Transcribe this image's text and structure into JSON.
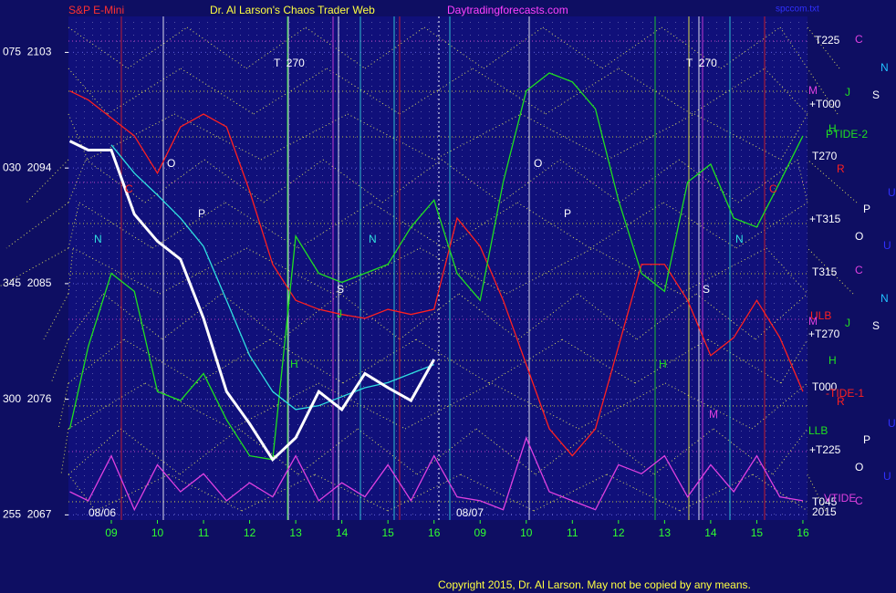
{
  "chart_data": {
    "type": "line",
    "symbol": "S&P E-Mini",
    "title": "Dr. Al Larson's Chaos Trader Web",
    "website": "Daytradingforecasts.com",
    "file_name": "spccom.txt",
    "day_labels": [
      "08/06",
      "08/07"
    ],
    "copyright": "Copyright 2015, Dr. Al Larson. May not be copied by any means.",
    "xlim": [
      8.07,
      24.1
    ],
    "xticks": [
      {
        "value": 9,
        "label": "09"
      },
      10,
      11,
      12,
      13,
      14,
      15,
      16,
      {
        "value": 17,
        "label": "09"
      },
      {
        "value": 18,
        "label": "10"
      },
      {
        "value": 19,
        "label": "11"
      },
      {
        "value": 20,
        "label": "12"
      },
      {
        "value": 21,
        "label": "13"
      },
      {
        "value": 22,
        "label": "14"
      },
      {
        "value": 23,
        "label": "15"
      },
      {
        "value": 24,
        "label": "16"
      }
    ],
    "ylim": [
      2066.6,
      2105.8
    ],
    "yticks": [
      {
        "value": 2103,
        "label": "075  2103"
      },
      {
        "value": 2094,
        "label": "030  2094"
      },
      {
        "value": 2085,
        "label": "345  2085"
      },
      {
        "value": 2076,
        "label": "300  2076"
      },
      {
        "value": 2067,
        "label": "255  2067"
      }
    ],
    "grid": true,
    "x": [
      8.1,
      8.5,
      9,
      9.5,
      10,
      10.5,
      11,
      11.5,
      12,
      12.5,
      13,
      13.5,
      14,
      14.5,
      15,
      15.5,
      16,
      16.5,
      17,
      17.5,
      18,
      18.5,
      19,
      19.5,
      20,
      20.5,
      21,
      21.5,
      22,
      22.5,
      23,
      23.5,
      24
    ],
    "series": [
      {
        "color": "#ff2020",
        "values": [
          2100.0,
          2099.3,
          2097.9,
          2096.5,
          2093.6,
          2097.2,
          2098.2,
          2097.2,
          2092.2,
          2086.5,
          2083.7,
          2083.0,
          2082.6,
          2082.3,
          2083.0,
          2082.6,
          2083.0,
          2090.1,
          2087.9,
          2083.7,
          2078.7,
          2073.7,
          2071.6,
          2073.7,
          2080.1,
          2086.5,
          2086.5,
          2083.7,
          2079.4,
          2080.8,
          2083.7,
          2080.8,
          2076.6
        ]
      },
      {
        "color": "#20e020",
        "values": [
          2073.7,
          2080.1,
          2085.8,
          2084.4,
          2076.6,
          2075.9,
          2078.0,
          2074.4,
          2071.6,
          2071.3,
          2088.7,
          2085.8,
          2085.1,
          2085.8,
          2086.5,
          2089.4,
          2091.5,
          2085.8,
          2083.7,
          2092.9,
          2100.0,
          2101.4,
          2100.7,
          2098.6,
          2091.5,
          2085.8,
          2084.4,
          2092.9,
          2094.3,
          2090.1,
          2089.4,
          2092.9,
          2096.5
        ]
      },
      {
        "color": "#e040e0",
        "values": [
          2068.8,
          2068.1,
          2071.6,
          2067.4,
          2070.9,
          2068.8,
          2070.2,
          2068.1,
          2069.5,
          2068.4,
          2071.6,
          2068.1,
          2069.5,
          2068.4,
          2070.9,
          2068.1,
          2071.6,
          2068.4,
          2068.1,
          2067.4,
          2073.0,
          2068.8,
          2068.1,
          2067.4,
          2070.9,
          2070.2,
          2071.6,
          2068.4,
          2070.9,
          2068.8,
          2071.6,
          2068.4,
          2068.1
        ]
      },
      {
        "color": "#30e0e0",
        "values": [
          null,
          null,
          2095.8,
          2093.6,
          2091.9,
          2090.1,
          2087.9,
          2083.7,
          2079.4,
          2076.6,
          2075.2,
          2075.5,
          2076.2,
          2076.9,
          2077.3,
          2078.0,
          2078.7,
          null,
          null,
          null,
          null,
          null,
          null,
          null,
          null,
          null,
          null,
          null,
          null,
          null,
          null,
          null,
          null
        ]
      },
      {
        "color": "#ffffff",
        "values": [
          2096.1,
          2095.4,
          2095.4,
          2090.4,
          2088.3,
          2086.9,
          2082.3,
          2076.6,
          2074.1,
          2071.3,
          2073.0,
          2076.6,
          2075.2,
          2078.0,
          2076.9,
          2075.9,
          2079.1,
          null,
          null,
          null,
          null,
          null,
          null,
          null,
          null,
          null,
          null,
          null,
          null,
          null,
          null,
          null,
          null
        ]
      }
    ],
    "annotations": [
      {
        "text": "T225",
        "color": "#ffffff"
      },
      {
        "text": "C",
        "color": "#e040e0"
      },
      {
        "text": "N",
        "color": "#20c0ff"
      },
      {
        "text": "M",
        "color": "#e040e0"
      },
      {
        "text": "J",
        "color": "#20e020"
      },
      {
        "text": "S",
        "color": "#ffffff"
      },
      {
        "text": "+T000",
        "color": "#ffffff"
      },
      {
        "text": "H",
        "color": "#20e020"
      },
      {
        "text": "PTIDE-2",
        "color": "#20e020"
      },
      {
        "text": "T270",
        "color": "#ffffff"
      },
      {
        "text": "R",
        "color": "#ff2020"
      },
      {
        "text": "U",
        "color": "#3030ff"
      },
      {
        "text": "+T315",
        "color": "#ffffff"
      },
      {
        "text": "P",
        "color": "#ffffff"
      },
      {
        "text": "O",
        "color": "#ffffff"
      },
      {
        "text": "U",
        "color": "#3030ff"
      },
      {
        "text": "T315",
        "color": "#ffffff"
      },
      {
        "text": "C",
        "color": "#e040e0"
      },
      {
        "text": "N",
        "color": "#20c0ff"
      },
      {
        "text": "ULB",
        "color": "#ff2020"
      },
      {
        "text": "M",
        "color": "#e040e0"
      },
      {
        "text": "J",
        "color": "#20e020"
      },
      {
        "text": "S",
        "color": "#ffffff"
      },
      {
        "text": "+T270",
        "color": "#ffffff"
      },
      {
        "text": "H",
        "color": "#20e020"
      },
      {
        "text": "T000",
        "color": "#ffffff"
      },
      {
        "text": "-TIDE-1",
        "color": "#ff2020"
      },
      {
        "text": "R",
        "color": "#ff2020"
      },
      {
        "text": "U",
        "color": "#3030ff"
      },
      {
        "text": "LLB",
        "color": "#20e020"
      },
      {
        "text": "+T225",
        "color": "#ffffff"
      },
      {
        "text": "P",
        "color": "#ffffff"
      },
      {
        "text": "O",
        "color": "#ffffff"
      },
      {
        "text": "U",
        "color": "#3030ff"
      },
      {
        "text": "T045",
        "color": "#ffffff"
      },
      {
        "text": "VTIDE",
        "color": "#e040e0"
      },
      {
        "text": "C",
        "color": "#e040e0"
      },
      {
        "text": "2015",
        "color": "#ffffff"
      },
      {
        "text": "T  270",
        "color": "#ffffff"
      },
      {
        "text": "T  270",
        "color": "#ffffff"
      },
      {
        "text": "O",
        "color": "#ffffff"
      },
      {
        "text": "O",
        "color": "#ffffff"
      },
      {
        "text": "P",
        "color": "#ffffff"
      },
      {
        "text": "P",
        "color": "#ffffff"
      },
      {
        "text": "N",
        "color": "#30e0e0"
      },
      {
        "text": "N",
        "color": "#30e0e0"
      },
      {
        "text": "N",
        "color": "#30e0e0"
      },
      {
        "text": "C",
        "color": "#ff2020"
      },
      {
        "text": "C",
        "color": "#ff2020"
      },
      {
        "text": "S",
        "color": "#ffffff"
      },
      {
        "text": "S",
        "color": "#ffffff"
      },
      {
        "text": "J",
        "color": "#20e020"
      },
      {
        "text": "H",
        "color": "#20e020"
      },
      {
        "text": "H",
        "color": "#20e020"
      },
      {
        "text": "M",
        "color": "#e040e0"
      }
    ]
  }
}
